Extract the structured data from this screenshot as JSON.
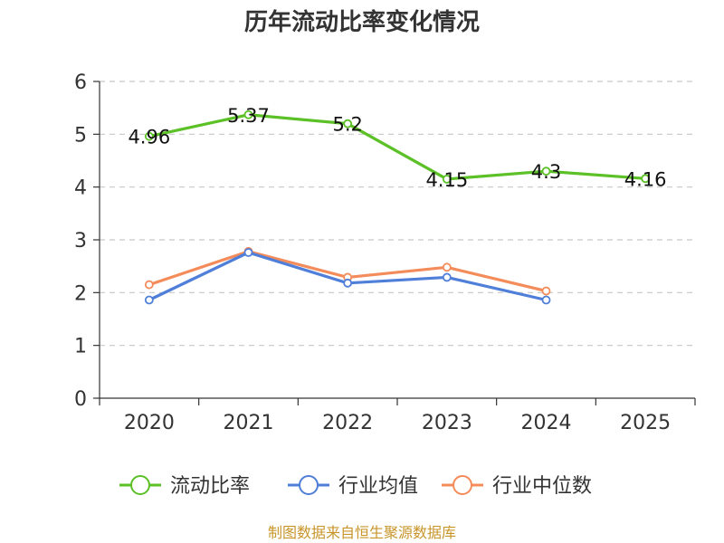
{
  "chart_data": {
    "type": "line",
    "title": "历年流动比率变化情况",
    "categories": [
      "2020",
      "2021",
      "2022",
      "2023",
      "2024",
      "2025"
    ],
    "y_ticks": [
      "0",
      "1",
      "2",
      "3",
      "4",
      "5",
      "6"
    ],
    "ylim": [
      0,
      6
    ],
    "grid": true,
    "legend_position": "bottom",
    "series": [
      {
        "name": "流动比率",
        "color": "#5cc027",
        "values": [
          4.96,
          5.37,
          5.2,
          4.15,
          4.3,
          4.16
        ],
        "labels": [
          "4.96",
          "5.37",
          "5.2",
          "4.15",
          "4.3",
          "4.16"
        ]
      },
      {
        "name": "行业均值",
        "color": "#4f7fd8",
        "values": [
          1.86,
          2.76,
          2.18,
          2.29,
          1.86,
          null
        ]
      },
      {
        "name": "行业中位数",
        "color": "#f38c5a",
        "values": [
          2.15,
          2.78,
          2.29,
          2.48,
          2.03,
          null
        ]
      }
    ]
  },
  "source": "制图数据来自恒生聚源数据库"
}
